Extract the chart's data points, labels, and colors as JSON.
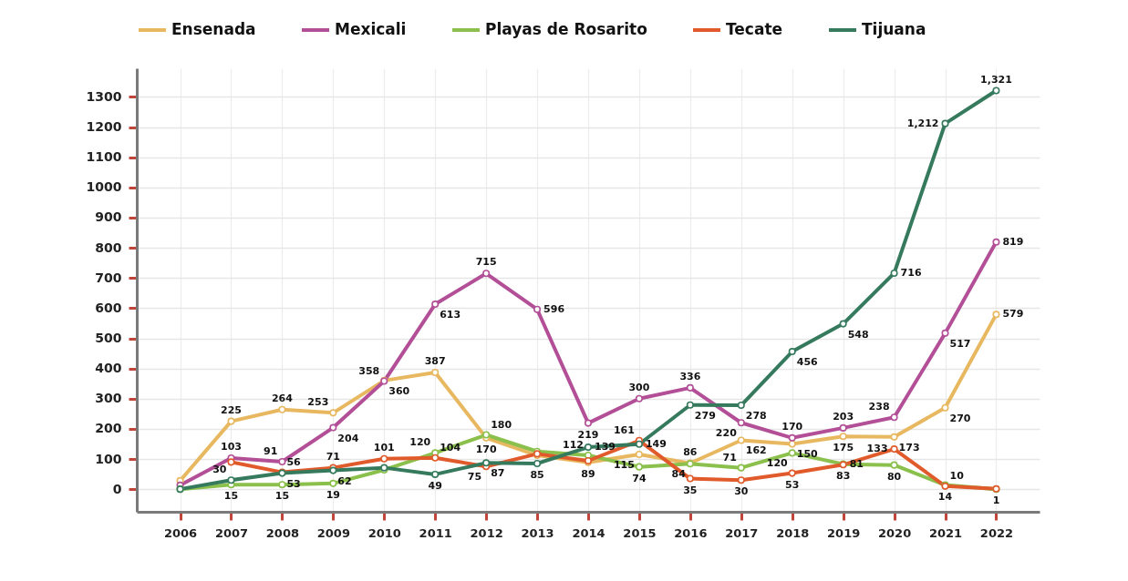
{
  "chart_data": {
    "type": "line",
    "categories": [
      "2006",
      "2007",
      "2008",
      "2009",
      "2010",
      "2011",
      "2012",
      "2013",
      "2014",
      "2015",
      "2016",
      "2017",
      "2018",
      "2019",
      "2020",
      "2021",
      "2022"
    ],
    "series": [
      {
        "name": "Ensenada",
        "color": "#e8b860",
        "values": [
          28,
          225,
          264,
          253,
          360,
          387,
          170,
          112,
          89,
          115,
          86,
          162,
          150,
          175,
          173,
          270,
          579
        ],
        "value_labels": [
          null,
          "225",
          "264",
          "253",
          "360",
          "387",
          "170",
          null,
          "89",
          "115",
          "86",
          "162",
          "150",
          "175",
          "173",
          "270",
          "579"
        ]
      },
      {
        "name": "Mexicali",
        "color": "#b24f97",
        "values": [
          13,
          103,
          91,
          204,
          358,
          613,
          715,
          596,
          219,
          300,
          336,
          220,
          170,
          203,
          238,
          517,
          819
        ],
        "value_labels": [
          null,
          "103",
          "91",
          "204",
          "358",
          "613",
          "715",
          "596",
          "219",
          "300",
          "336",
          "220",
          "170",
          "203",
          "238",
          "517",
          "819"
        ]
      },
      {
        "name": "Playas de Rosarito",
        "color": "#8ac04b",
        "values": [
          0,
          15,
          15,
          19,
          64,
          120,
          180,
          125,
          112,
          74,
          84,
          71,
          120,
          83,
          80,
          14,
          0
        ],
        "value_labels": [
          null,
          "15",
          "15",
          "19",
          null,
          "120",
          "180",
          null,
          "112",
          "74",
          "84",
          "71",
          "120",
          "83",
          "80",
          "14",
          null
        ]
      },
      {
        "name": "Tecate",
        "color": "#e05a2b",
        "values": [
          null,
          90,
          56,
          71,
          101,
          104,
          75,
          117,
          94,
          161,
          35,
          30,
          53,
          81,
          133,
          10,
          1
        ],
        "value_labels": [
          null,
          null,
          "56",
          "71",
          "101",
          "104",
          "75",
          null,
          null,
          "161",
          "35",
          "30",
          "53",
          "81",
          "133",
          "10",
          "1"
        ]
      },
      {
        "name": "Tijuana",
        "color": "#367a5e",
        "values": [
          0,
          30,
          53,
          62,
          71,
          49,
          87,
          85,
          139,
          149,
          279,
          278,
          456,
          548,
          716,
          1212,
          1321
        ],
        "value_labels": [
          null,
          "30",
          "53",
          "62",
          null,
          "49",
          "87",
          "85",
          "139",
          "149",
          "279",
          "278",
          "456",
          "548",
          "716",
          "1,212",
          "1,321"
        ]
      }
    ],
    "ylim": [
      -75,
      1395
    ],
    "yticks": [
      0,
      100,
      200,
      300,
      400,
      500,
      600,
      700,
      800,
      900,
      1000,
      1100,
      1200,
      1300
    ],
    "grid": true,
    "legend": "top",
    "marker": "circle",
    "line_style": "solid"
  }
}
